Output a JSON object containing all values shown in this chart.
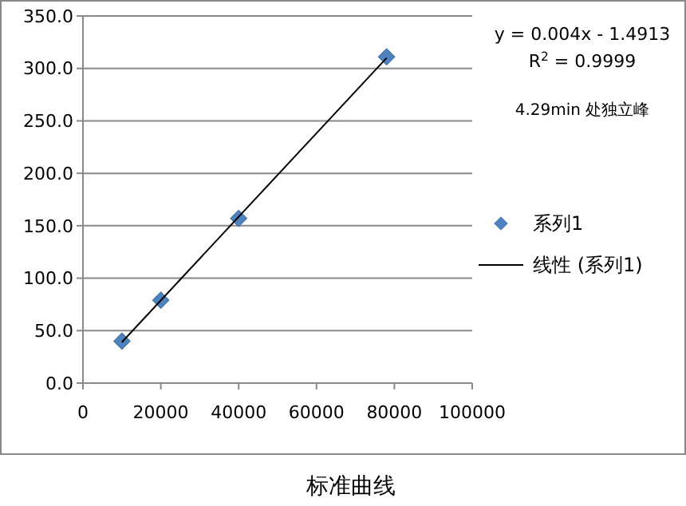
{
  "chart_data": {
    "type": "scatter",
    "title": "标准曲线",
    "xlim": [
      0,
      100000
    ],
    "ylim": [
      0,
      350
    ],
    "xticks": [
      0,
      20000,
      40000,
      60000,
      80000,
      100000
    ],
    "yticks": [
      {
        "value": 0,
        "label": "0.0"
      },
      {
        "value": 50,
        "label": "50.0"
      },
      {
        "value": 100,
        "label": "100.0"
      },
      {
        "value": 150,
        "label": "150.0"
      },
      {
        "value": 200,
        "label": "200.0"
      },
      {
        "value": 250,
        "label": "250.0"
      },
      {
        "value": 300,
        "label": "300.0"
      },
      {
        "value": 350,
        "label": "350.0"
      }
    ],
    "grid": "y",
    "legend": "right",
    "marker": "diamond",
    "annotations": [
      "y = 0.004x - 1.4913",
      "R$^{2}$ = 0.9999",
      "4.29min 处独立峰"
    ],
    "series": [
      {
        "name": "系列1",
        "color": "#4f81bd",
        "x": [
          10000,
          20000,
          40000,
          78000
        ],
        "values": [
          40,
          79,
          157,
          311
        ]
      },
      {
        "name": "线性 (系列1)",
        "type": "line",
        "color": "#000000",
        "line_style": "solid",
        "marker": "none",
        "x": [
          10000,
          78000
        ],
        "values": [
          39,
          310
        ]
      }
    ]
  }
}
